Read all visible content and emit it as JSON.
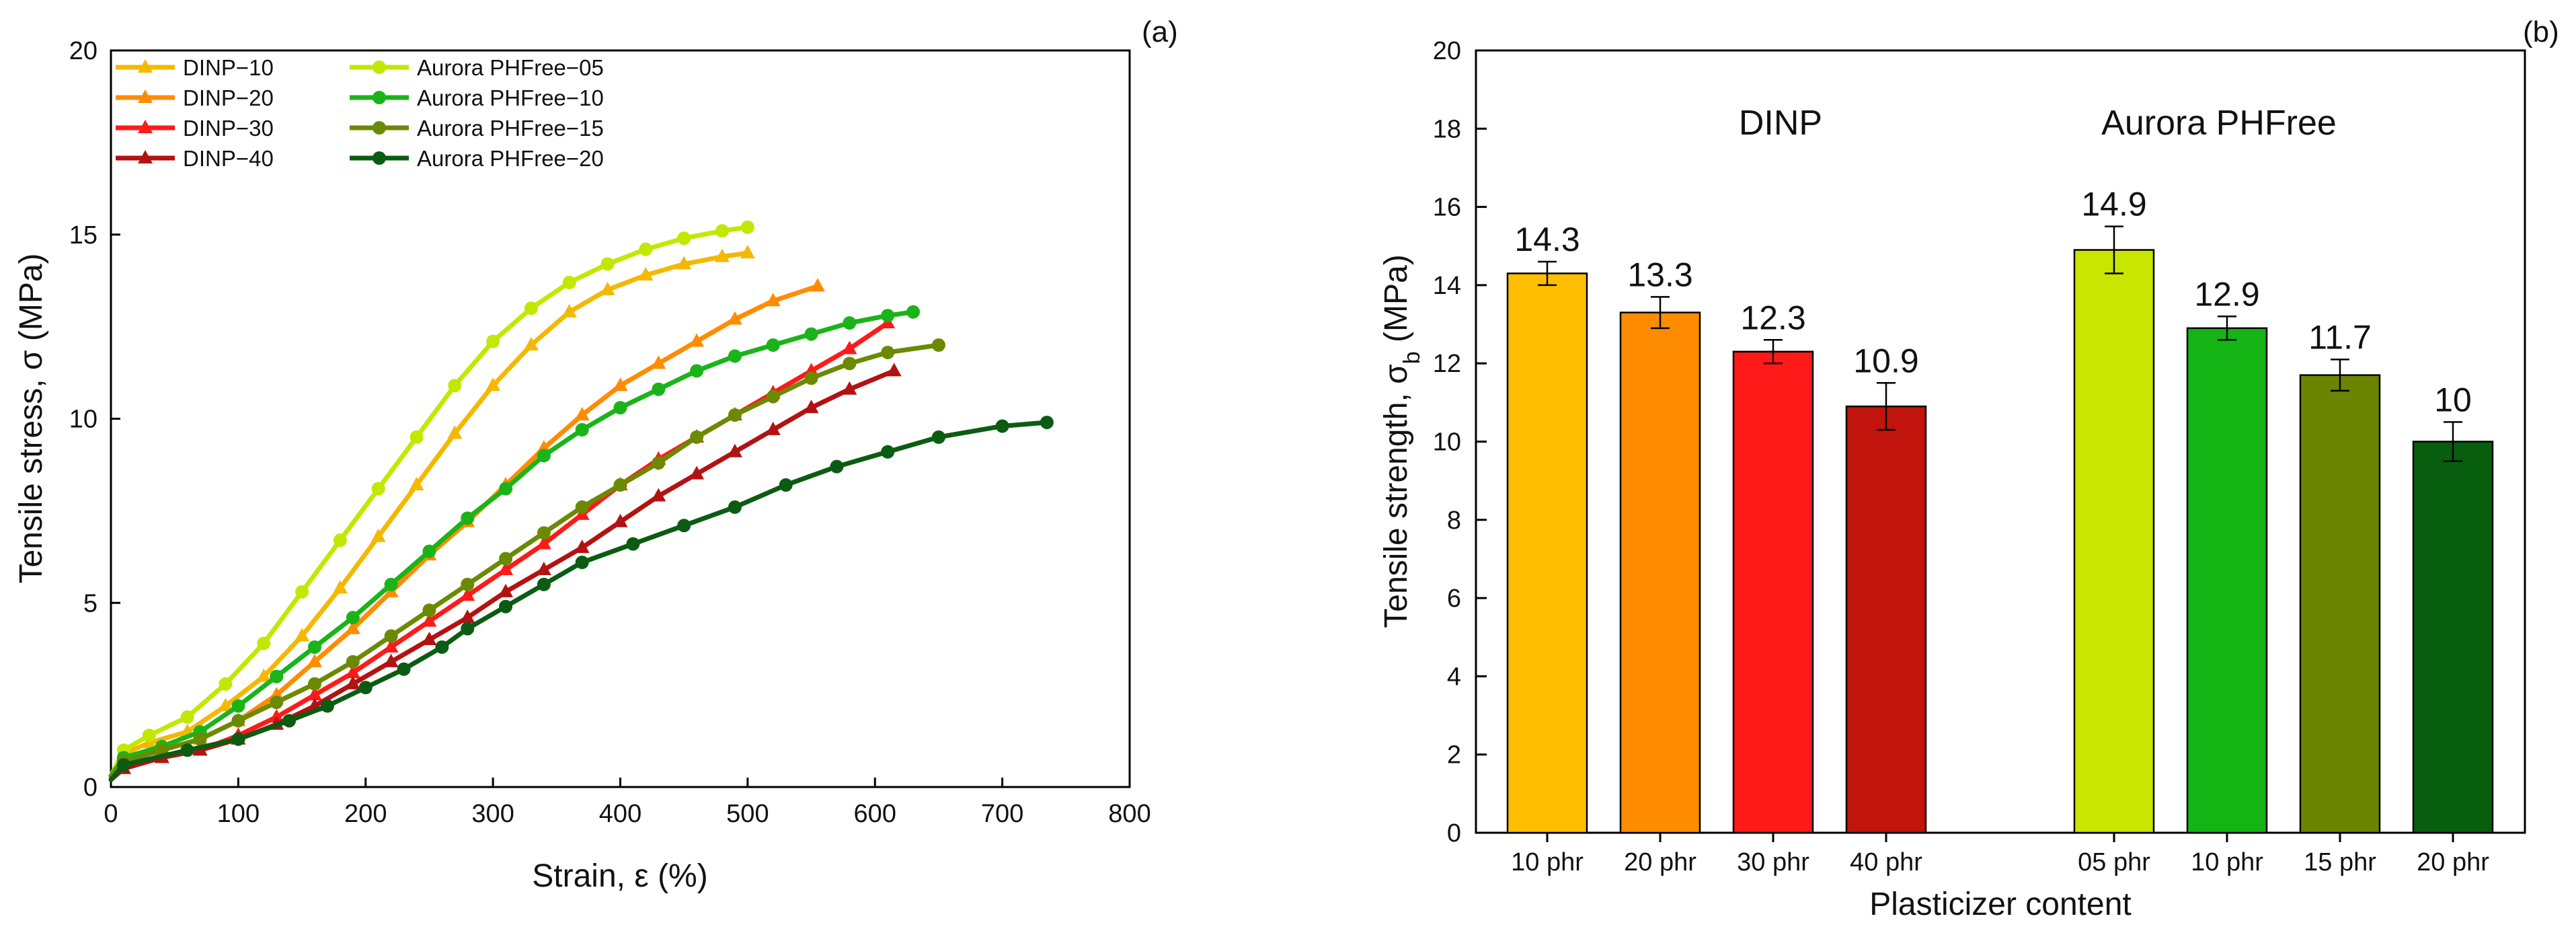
{
  "chart_data": [
    {
      "panel": "(a)",
      "type": "line",
      "xlabel": "Strain, ε (%)",
      "ylabel": "Tensile stress, σ (MPa)",
      "xlim": [
        0,
        800
      ],
      "ylim": [
        0,
        20
      ],
      "xticks": [
        "0",
        "100",
        "200",
        "300",
        "400",
        "500",
        "600",
        "700",
        "800"
      ],
      "yticks": [
        "0",
        "5",
        "10",
        "15",
        "20"
      ],
      "legend_position": "top-left",
      "series": [
        {
          "name": "DINP−10",
          "marker": "triangle",
          "color": "#f5b800",
          "x": [
            0,
            10,
            30,
            60,
            90,
            120,
            150,
            180,
            210,
            240,
            270,
            300,
            330,
            360,
            390,
            420,
            450,
            480,
            500
          ],
          "y": [
            0.2,
            0.9,
            1.2,
            1.5,
            2.2,
            3.0,
            4.1,
            5.4,
            6.8,
            8.2,
            9.6,
            10.9,
            12.0,
            12.9,
            13.5,
            13.9,
            14.2,
            14.4,
            14.5
          ]
        },
        {
          "name": "DINP−20",
          "marker": "triangle",
          "color": "#ff8c00",
          "x": [
            0,
            10,
            40,
            70,
            100,
            130,
            160,
            190,
            220,
            250,
            280,
            310,
            340,
            370,
            400,
            430,
            460,
            490,
            520,
            555
          ],
          "y": [
            0.2,
            0.7,
            1.0,
            1.3,
            1.8,
            2.5,
            3.4,
            4.3,
            5.3,
            6.3,
            7.2,
            8.2,
            9.2,
            10.1,
            10.9,
            11.5,
            12.1,
            12.7,
            13.2,
            13.6
          ]
        },
        {
          "name": "DINP−30",
          "marker": "triangle",
          "color": "#ff1a1a",
          "x": [
            0,
            10,
            40,
            70,
            100,
            130,
            160,
            190,
            220,
            250,
            280,
            310,
            340,
            370,
            400,
            430,
            460,
            490,
            520,
            550,
            580,
            610
          ],
          "y": [
            0.2,
            0.5,
            0.8,
            1.0,
            1.4,
            1.9,
            2.5,
            3.1,
            3.8,
            4.5,
            5.2,
            5.9,
            6.6,
            7.4,
            8.2,
            8.9,
            9.5,
            10.1,
            10.7,
            11.3,
            11.9,
            12.6
          ]
        },
        {
          "name": "DINP−40",
          "marker": "triangle",
          "color": "#b31212",
          "x": [
            0,
            10,
            40,
            70,
            100,
            130,
            160,
            190,
            220,
            250,
            280,
            310,
            340,
            370,
            400,
            430,
            460,
            490,
            520,
            550,
            580,
            615
          ],
          "y": [
            0.2,
            0.5,
            0.8,
            1.0,
            1.3,
            1.7,
            2.2,
            2.8,
            3.4,
            4.0,
            4.6,
            5.3,
            5.9,
            6.5,
            7.2,
            7.9,
            8.5,
            9.1,
            9.7,
            10.3,
            10.8,
            11.3
          ]
        },
        {
          "name": "Aurora PHFree−05",
          "marker": "circle",
          "color": "#c2e800",
          "x": [
            0,
            10,
            30,
            60,
            90,
            120,
            150,
            180,
            210,
            240,
            270,
            300,
            330,
            360,
            390,
            420,
            450,
            480,
            500
          ],
          "y": [
            0.3,
            1.0,
            1.4,
            1.9,
            2.8,
            3.9,
            5.3,
            6.7,
            8.1,
            9.5,
            10.9,
            12.1,
            13.0,
            13.7,
            14.2,
            14.6,
            14.9,
            15.1,
            15.2
          ]
        },
        {
          "name": "Aurora PHFree−10",
          "marker": "circle",
          "color": "#1ab41a",
          "x": [
            0,
            10,
            40,
            70,
            100,
            130,
            160,
            190,
            220,
            250,
            280,
            310,
            340,
            370,
            400,
            430,
            460,
            490,
            520,
            550,
            580,
            610,
            630
          ],
          "y": [
            0.3,
            0.8,
            1.1,
            1.5,
            2.2,
            3.0,
            3.8,
            4.6,
            5.5,
            6.4,
            7.3,
            8.1,
            9.0,
            9.7,
            10.3,
            10.8,
            11.3,
            11.7,
            12.0,
            12.3,
            12.6,
            12.8,
            12.9
          ]
        },
        {
          "name": "Aurora PHFree−15",
          "marker": "circle",
          "color": "#6b8a00",
          "x": [
            0,
            10,
            40,
            70,
            100,
            130,
            160,
            190,
            220,
            250,
            280,
            310,
            340,
            370,
            400,
            430,
            460,
            490,
            520,
            550,
            580,
            610,
            650
          ],
          "y": [
            0.3,
            0.7,
            1.0,
            1.3,
            1.8,
            2.3,
            2.8,
            3.4,
            4.1,
            4.8,
            5.5,
            6.2,
            6.9,
            7.6,
            8.2,
            8.8,
            9.5,
            10.1,
            10.6,
            11.1,
            11.5,
            11.8,
            12.0
          ]
        },
        {
          "name": "Aurora PHFree−20",
          "marker": "circle",
          "color": "#0b5c12",
          "x": [
            0,
            10,
            60,
            100,
            140,
            170,
            200,
            230,
            260,
            280,
            310,
            340,
            370,
            410,
            450,
            490,
            530,
            570,
            610,
            650,
            700,
            735
          ],
          "y": [
            0.2,
            0.6,
            1.0,
            1.3,
            1.8,
            2.2,
            2.7,
            3.2,
            3.8,
            4.3,
            4.9,
            5.5,
            6.1,
            6.6,
            7.1,
            7.6,
            8.2,
            8.7,
            9.1,
            9.5,
            9.8,
            9.9
          ]
        }
      ]
    },
    {
      "panel": "(b)",
      "type": "bar",
      "xlabel": "Plasticizer content",
      "ylabel_main": "Tensile strength, σ",
      "ylabel_sub": "b",
      "ylabel_unit": " (MPa)",
      "ylim": [
        0,
        20
      ],
      "yticks": [
        "0",
        "2",
        "4",
        "6",
        "8",
        "10",
        "12",
        "14",
        "16",
        "18",
        "20"
      ],
      "groups": [
        {
          "name": "DINP",
          "bars": [
            {
              "label": "10 phr",
              "value": 14.3,
              "error": 0.3,
              "color": "#ffbf00",
              "value_label": "14.3"
            },
            {
              "label": "20 phr",
              "value": 13.3,
              "error": 0.4,
              "color": "#ff8c00",
              "value_label": "13.3"
            },
            {
              "label": "30 phr",
              "value": 12.3,
              "error": 0.3,
              "color": "#ff1a1a",
              "value_label": "12.3"
            },
            {
              "label": "40 phr",
              "value": 10.9,
              "error": 0.6,
              "color": "#c0140c",
              "value_label": "10.9"
            }
          ]
        },
        {
          "name": "Aurora PHFree",
          "bars": [
            {
              "label": "05 phr",
              "value": 14.9,
              "error": 0.6,
              "color": "#c8e600",
              "value_label": "14.9"
            },
            {
              "label": "10 phr",
              "value": 12.9,
              "error": 0.3,
              "color": "#14b414",
              "value_label": "12.9"
            },
            {
              "label": "15 phr",
              "value": 11.7,
              "error": 0.4,
              "color": "#6b8500",
              "value_label": "11.7"
            },
            {
              "label": "20 phr",
              "value": 10.0,
              "error": 0.5,
              "color": "#075e0e",
              "value_label": "10"
            }
          ]
        }
      ]
    }
  ]
}
